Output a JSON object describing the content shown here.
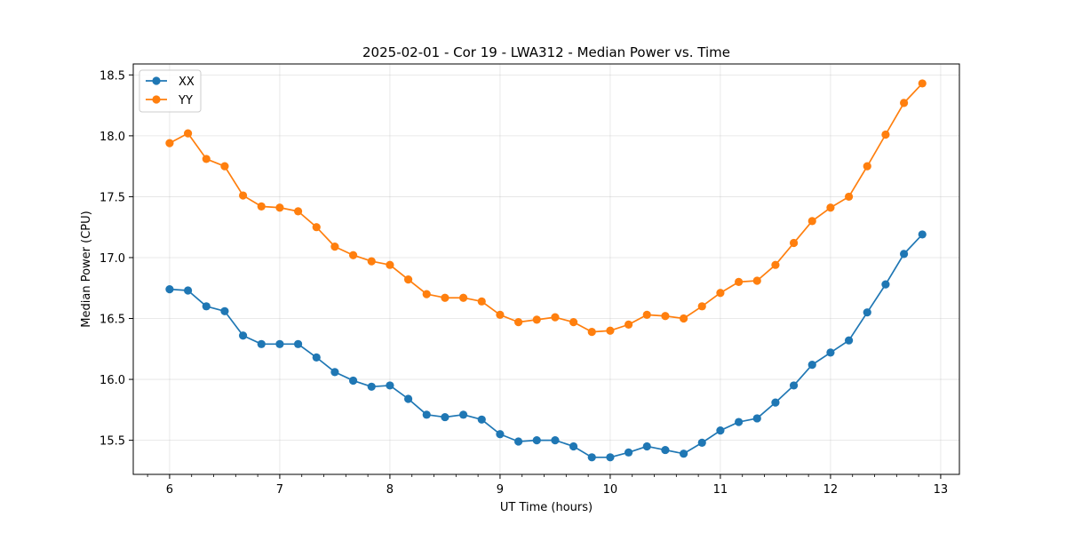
{
  "chart_data": {
    "type": "line",
    "title": "2025-02-01 - Cor 19 - LWA312 - Median Power vs. Time",
    "xlabel": "UT Time (hours)",
    "ylabel": "Median Power (CPU)",
    "xlim": [
      5.67,
      13.17
    ],
    "ylim": [
      15.22,
      18.59
    ],
    "xticks": [
      6,
      7,
      8,
      9,
      10,
      11,
      12,
      13
    ],
    "xtick_labels": [
      "6",
      "7",
      "8",
      "9",
      "10",
      "11",
      "12",
      "13"
    ],
    "yticks": [
      15.5,
      16.0,
      16.5,
      17.0,
      17.5,
      18.0,
      18.5
    ],
    "ytick_labels": [
      "15.5",
      "16.0",
      "16.5",
      "17.0",
      "17.5",
      "18.0",
      "18.5"
    ],
    "grid": true,
    "legend_position": "top-left",
    "x": [
      6.0,
      6.1667,
      6.3333,
      6.5,
      6.6667,
      6.8333,
      7.0,
      7.1667,
      7.3333,
      7.5,
      7.6667,
      7.8333,
      8.0,
      8.1667,
      8.3333,
      8.5,
      8.6667,
      8.8333,
      9.0,
      9.1667,
      9.3333,
      9.5,
      9.6667,
      9.8333,
      10.0,
      10.1667,
      10.3333,
      10.5,
      10.6667,
      10.8333,
      11.0,
      11.1667,
      11.3333,
      11.5,
      11.6667,
      11.8333,
      12.0,
      12.1667,
      12.3333,
      12.5,
      12.6667,
      12.8333
    ],
    "series": [
      {
        "name": "XX",
        "color": "#1f77b4",
        "values": [
          16.74,
          16.73,
          16.6,
          16.56,
          16.36,
          16.29,
          16.29,
          16.29,
          16.18,
          16.06,
          15.99,
          15.94,
          15.95,
          15.84,
          15.71,
          15.69,
          15.71,
          15.67,
          15.55,
          15.49,
          15.5,
          15.5,
          15.45,
          15.36,
          15.36,
          15.4,
          15.45,
          15.42,
          15.39,
          15.48,
          15.58,
          15.65,
          15.68,
          15.81,
          15.95,
          16.12,
          16.22,
          16.32,
          16.55,
          16.78,
          17.03,
          17.19
        ]
      },
      {
        "name": "YY",
        "color": "#ff7f0e",
        "values": [
          17.94,
          18.02,
          17.81,
          17.75,
          17.51,
          17.42,
          17.41,
          17.38,
          17.25,
          17.09,
          17.02,
          16.97,
          16.94,
          16.82,
          16.7,
          16.67,
          16.67,
          16.64,
          16.53,
          16.47,
          16.49,
          16.51,
          16.47,
          16.39,
          16.4,
          16.45,
          16.53,
          16.52,
          16.5,
          16.6,
          16.71,
          16.8,
          16.81,
          16.94,
          17.12,
          17.3,
          17.41,
          17.5,
          17.75,
          18.01,
          18.27,
          18.43
        ]
      }
    ]
  }
}
